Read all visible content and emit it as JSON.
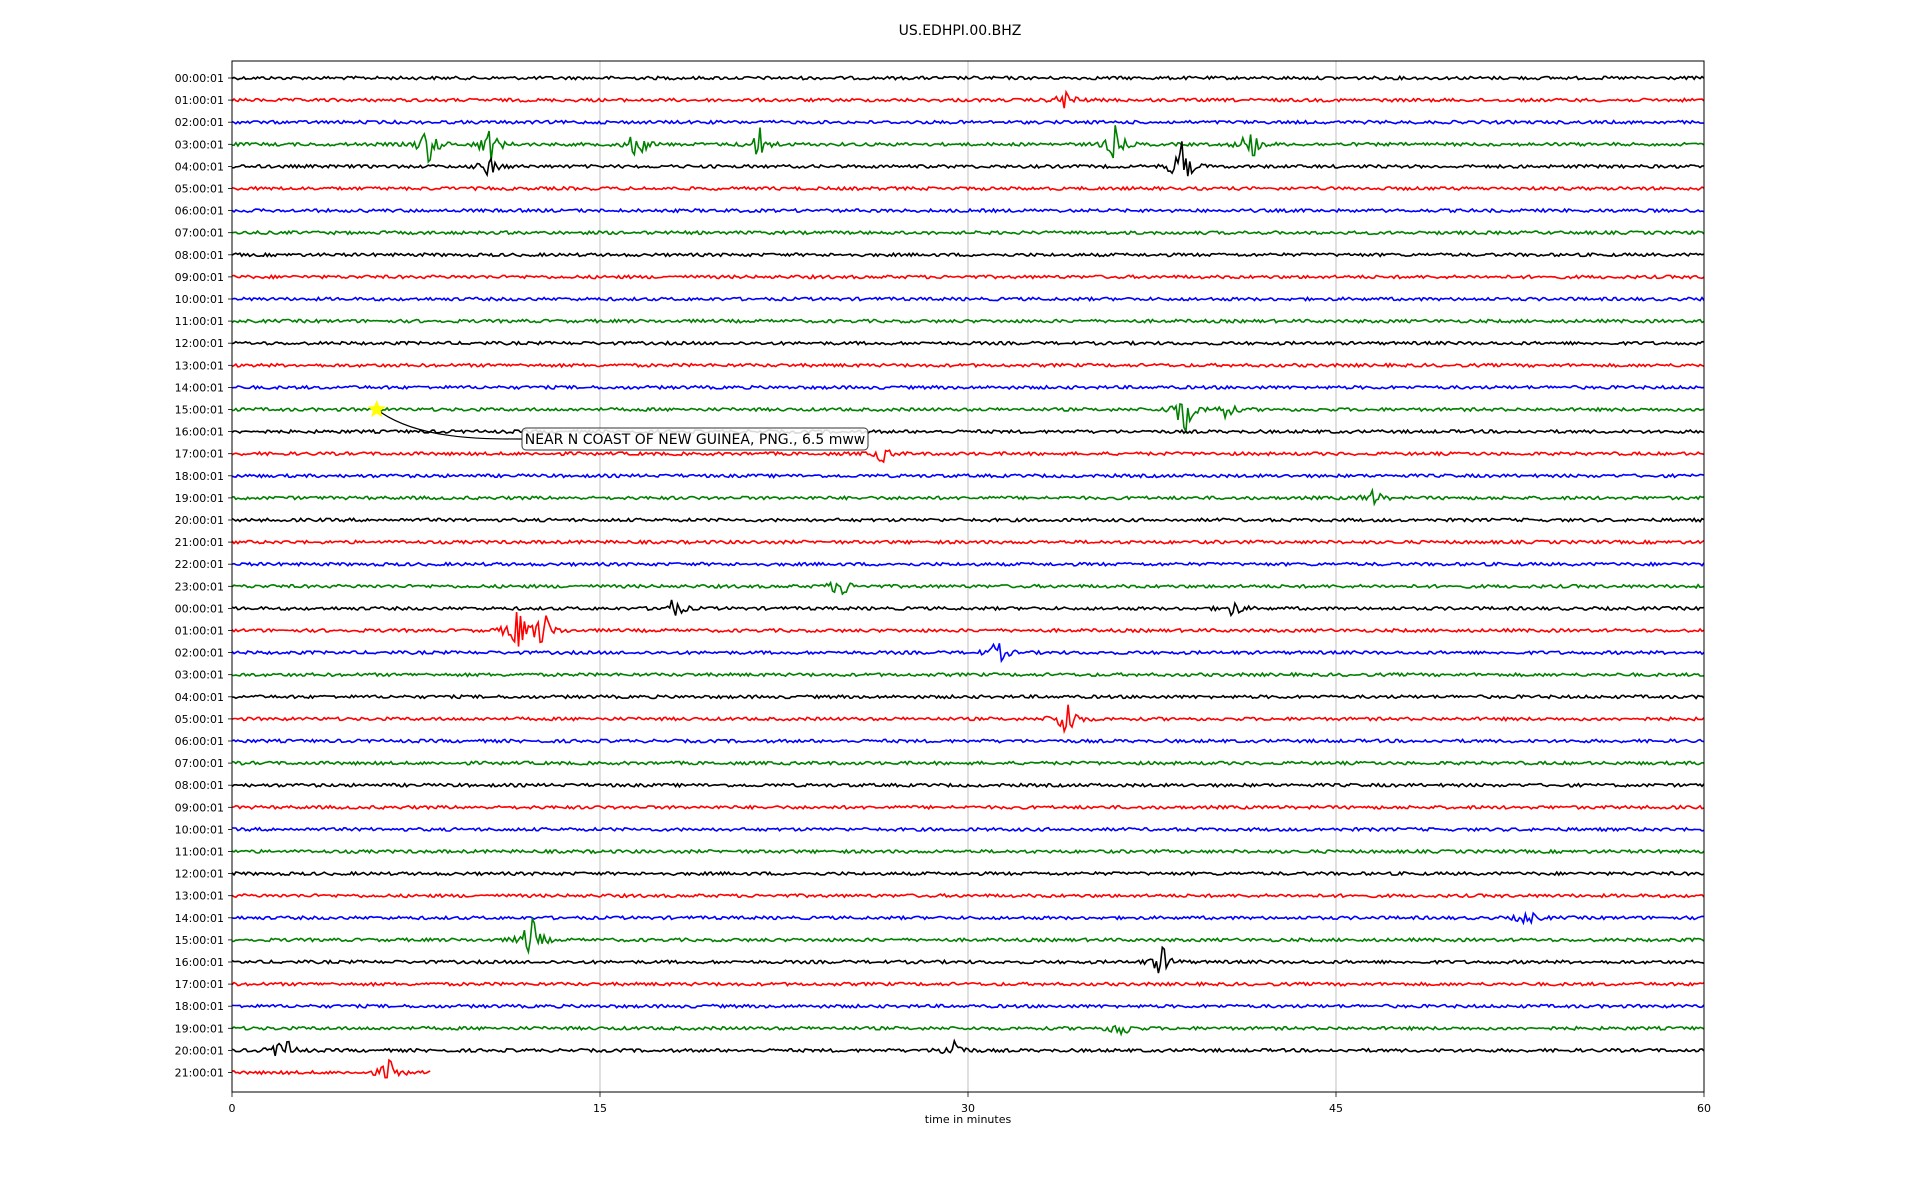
{
  "chart_data": {
    "type": "line",
    "title": "US.EDHPI.00.BHZ",
    "xlabel": "time in minutes",
    "ylabel": "",
    "xlim": [
      0,
      60
    ],
    "x_ticks": [
      "0",
      "15",
      "30",
      "45",
      "60"
    ],
    "x_tick_values": [
      0,
      15,
      30,
      45,
      60
    ],
    "grid": "vertical at x ticks",
    "colors": [
      "#000000",
      "#ff0000",
      "#0000ff",
      "#008000"
    ],
    "row_labels": [
      "00:00:01",
      "01:00:01",
      "02:00:01",
      "03:00:01",
      "04:00:01",
      "05:00:01",
      "06:00:01",
      "07:00:01",
      "08:00:01",
      "09:00:01",
      "10:00:01",
      "11:00:01",
      "12:00:01",
      "13:00:01",
      "14:00:01",
      "15:00:01",
      "16:00:01",
      "17:00:01",
      "18:00:01",
      "19:00:01",
      "20:00:01",
      "21:00:01",
      "22:00:01",
      "23:00:01",
      "00:00:01",
      "01:00:01",
      "02:00:01",
      "03:00:01",
      "04:00:01",
      "05:00:01",
      "06:00:01",
      "07:00:01",
      "08:00:01",
      "09:00:01",
      "10:00:01",
      "11:00:01",
      "12:00:01",
      "13:00:01",
      "14:00:01",
      "15:00:01",
      "16:00:01",
      "17:00:01",
      "18:00:01",
      "19:00:01",
      "20:00:01",
      "21:00:01"
    ],
    "last_row_end_minute": 8.1,
    "events": [
      {
        "row": 3,
        "minute": 8.0,
        "amp": 1.0
      },
      {
        "row": 3,
        "minute": 10.5,
        "amp": 0.9
      },
      {
        "row": 3,
        "minute": 16.5,
        "amp": 0.8
      },
      {
        "row": 3,
        "minute": 21.5,
        "amp": 0.8
      },
      {
        "row": 3,
        "minute": 36.0,
        "amp": 0.8
      },
      {
        "row": 3,
        "minute": 41.5,
        "amp": 0.9
      },
      {
        "row": 4,
        "minute": 38.7,
        "amp": 1.3
      },
      {
        "row": 4,
        "minute": 10.5,
        "amp": 0.5
      },
      {
        "row": 1,
        "minute": 34.0,
        "amp": 0.5
      },
      {
        "row": 15,
        "minute": 38.8,
        "amp": 1.3
      },
      {
        "row": 15,
        "minute": 40.5,
        "amp": 0.4
      },
      {
        "row": 17,
        "minute": 26.5,
        "amp": 0.4
      },
      {
        "row": 19,
        "minute": 46.5,
        "amp": 0.4
      },
      {
        "row": 23,
        "minute": 24.8,
        "amp": 0.6
      },
      {
        "row": 24,
        "minute": 18.0,
        "amp": 0.5
      },
      {
        "row": 24,
        "minute": 40.8,
        "amp": 0.4
      },
      {
        "row": 25,
        "minute": 11.6,
        "amp": 1.2
      },
      {
        "row": 25,
        "minute": 12.7,
        "amp": 1.0
      },
      {
        "row": 26,
        "minute": 31.2,
        "amp": 0.6
      },
      {
        "row": 29,
        "minute": 34.0,
        "amp": 1.2
      },
      {
        "row": 38,
        "minute": 52.8,
        "amp": 0.4
      },
      {
        "row": 39,
        "minute": 12.2,
        "amp": 1.2
      },
      {
        "row": 40,
        "minute": 37.9,
        "amp": 0.8
      },
      {
        "row": 43,
        "minute": 36.2,
        "amp": 0.5
      },
      {
        "row": 44,
        "minute": 2.1,
        "amp": 0.8
      },
      {
        "row": 44,
        "minute": 29.4,
        "amp": 0.7
      },
      {
        "row": 45,
        "minute": 6.4,
        "amp": 0.6
      }
    ],
    "annotations": [
      {
        "text": "NEAR N COAST OF NEW GUINEA, PNG., 6.5 mww",
        "row": 15,
        "minute": 5.9,
        "marker": "star",
        "marker_color": "#ffff00"
      }
    ]
  }
}
